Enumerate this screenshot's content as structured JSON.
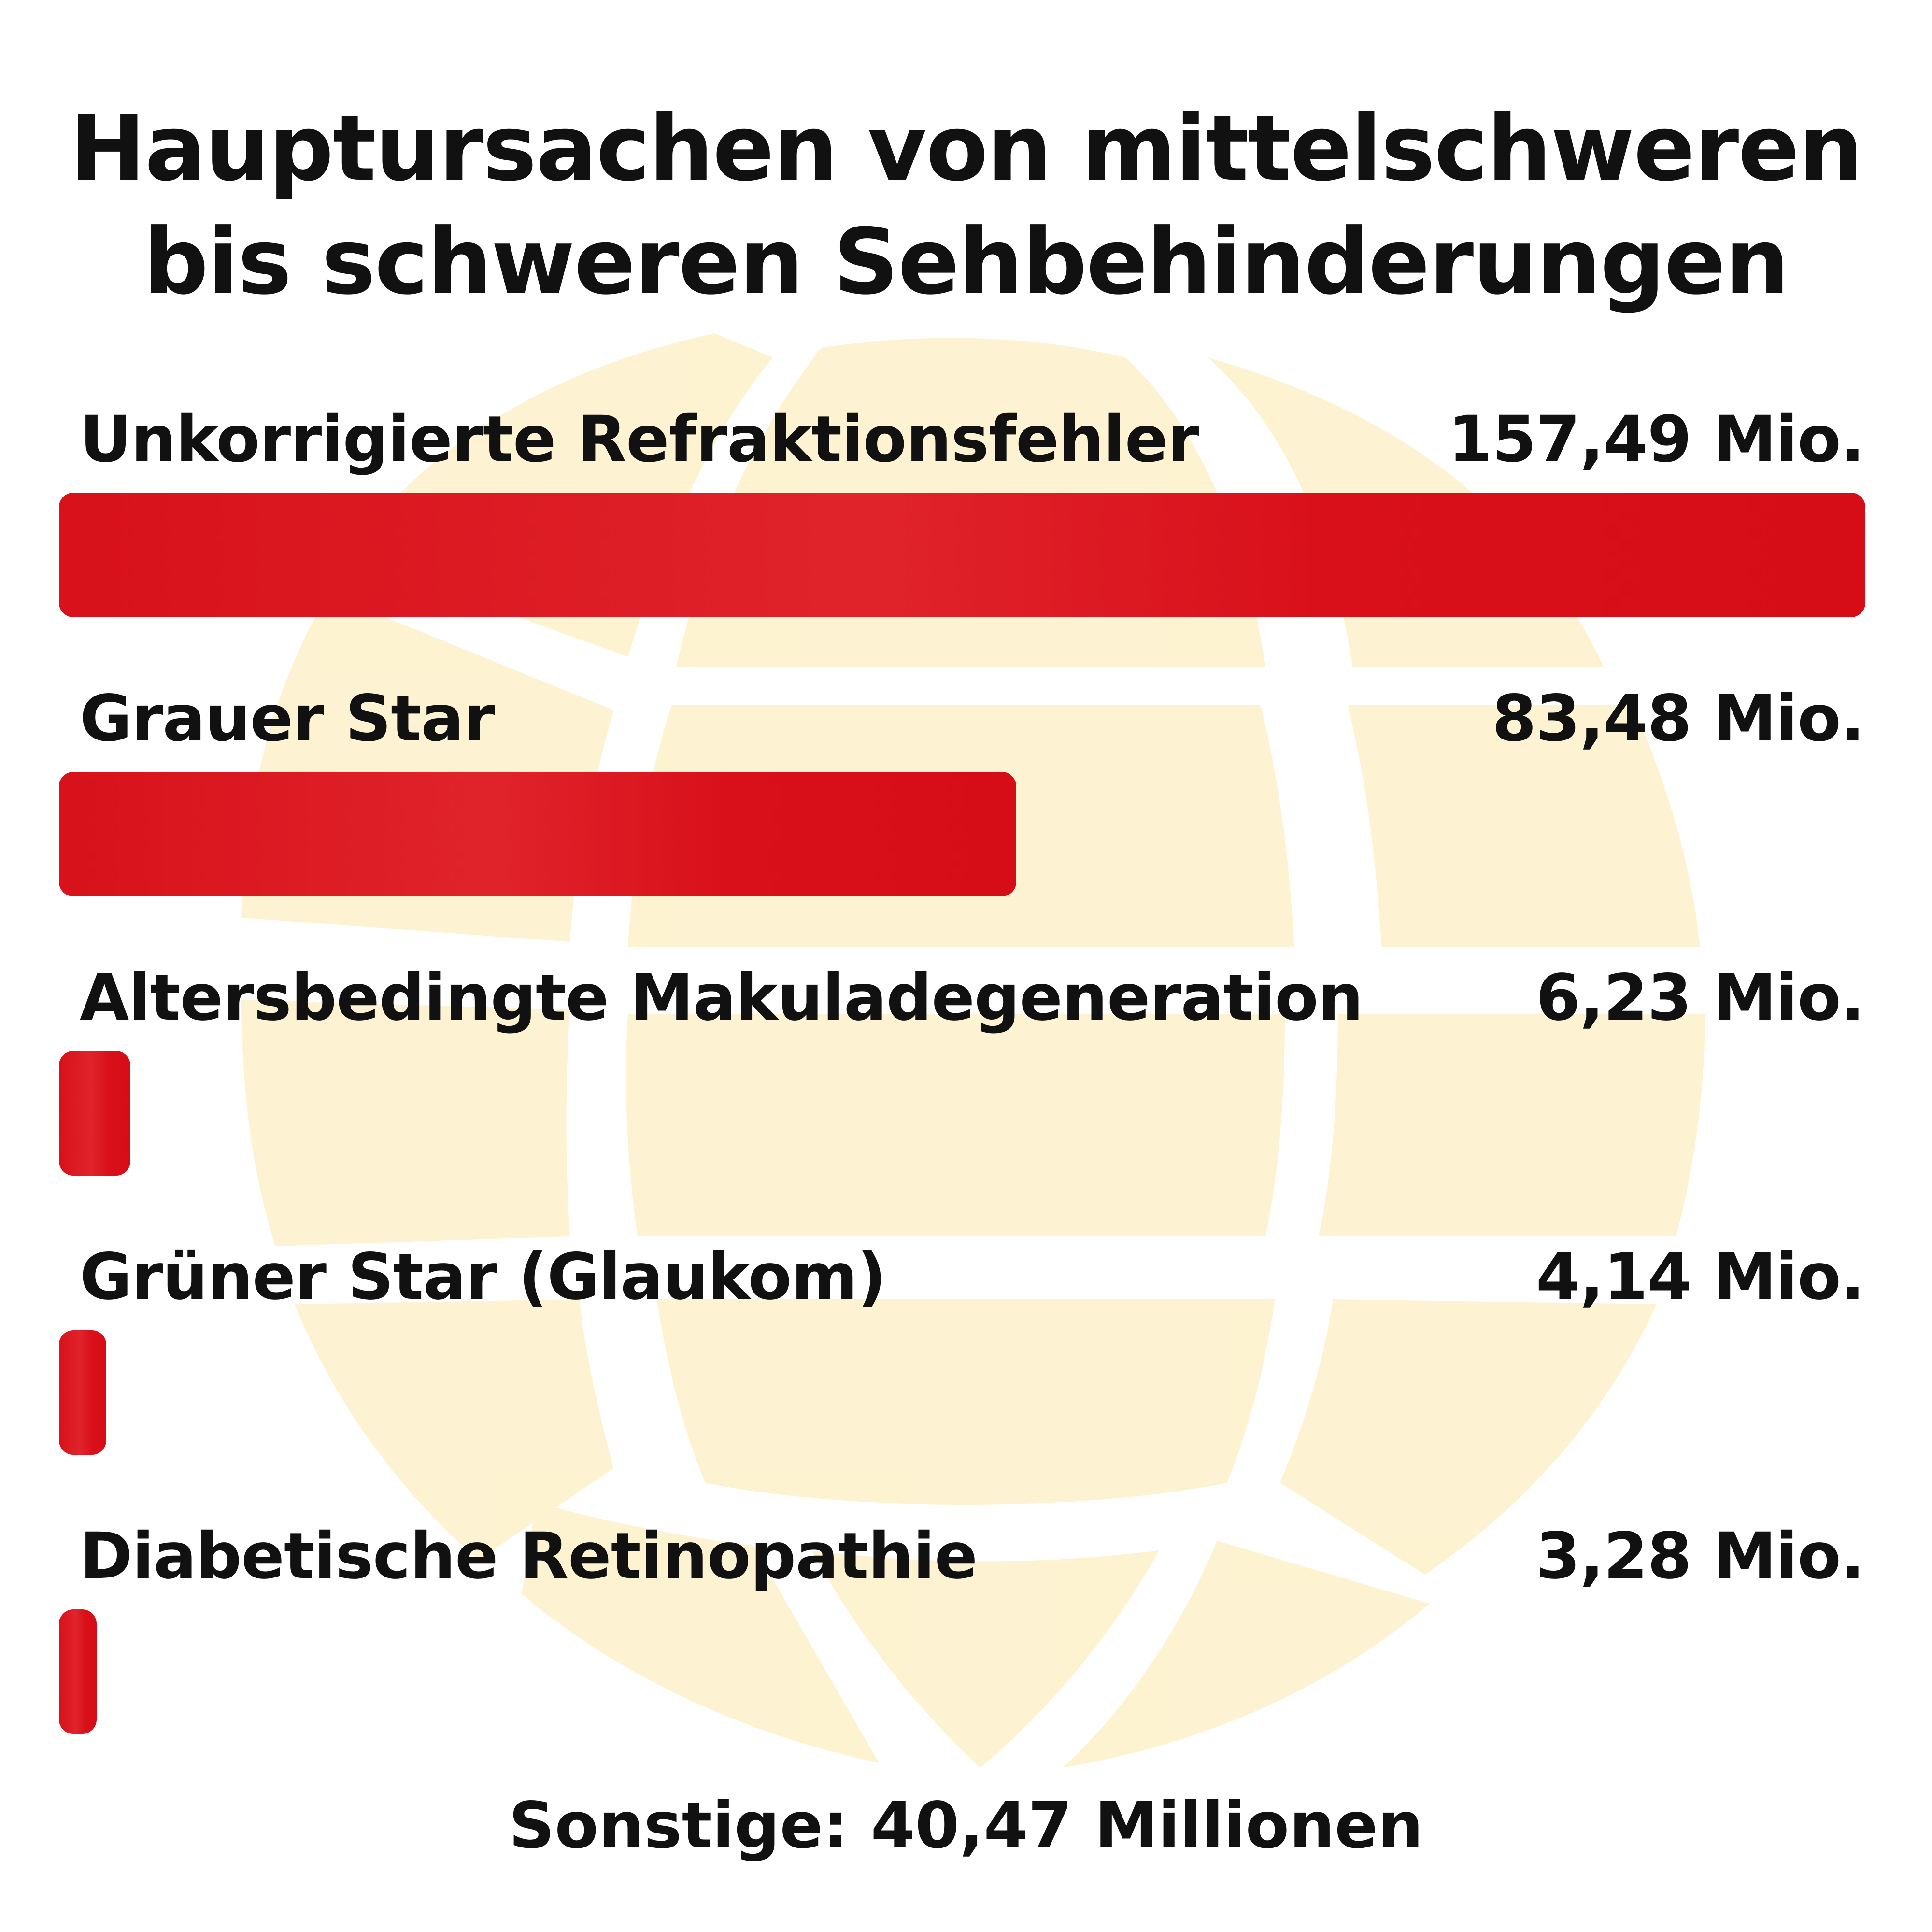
{
  "chart_data": {
    "type": "bar",
    "orientation": "horizontal",
    "title": "Hauptursachen von mittelschweren\nbis schweren Sehbehinderungen",
    "categories": [
      "Unkorrigierte Refraktionsfehler",
      "Grauer Star",
      "Altersbedingte Makuladegeneration",
      "Grüner Star (Glaukom)",
      "Diabetische Retinopathie"
    ],
    "values": [
      157.49,
      83.48,
      6.23,
      4.14,
      3.28
    ],
    "value_labels": [
      "157,49 Mio.",
      "83,48 Mio.",
      "6,23 Mio.",
      "4,14 Mio.",
      "3,28 Mio."
    ],
    "unit": "Mio.",
    "footnote": "Sonstige: 40,47 Millionen",
    "xlim": [
      0,
      157.49
    ],
    "grid": false,
    "legend": "none",
    "colors": {
      "bar": "#d8111a",
      "background_motif": "#fdf1c8",
      "text": "#111111"
    }
  }
}
